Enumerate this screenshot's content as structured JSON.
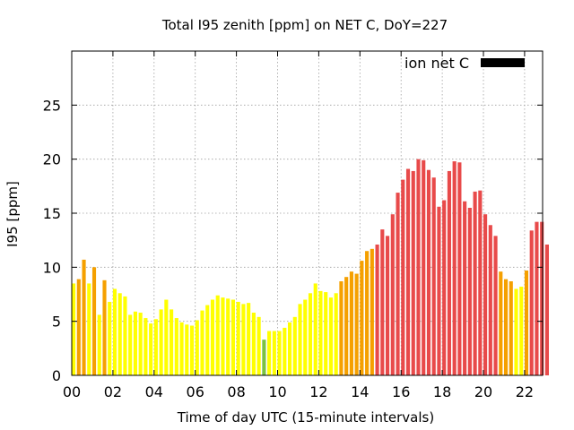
{
  "chart_data": {
    "type": "bar",
    "title": "Total I95 zenith [ppm] on NET C, DoY=227",
    "xlabel": "Time of day UTC (15-minute intervals)",
    "ylabel": "I95 [ppm]",
    "legend": {
      "label": "ion net C",
      "color": "#000000",
      "placement": "top-right"
    },
    "xlim": [
      0,
      22.875
    ],
    "ylim": [
      0,
      30
    ],
    "x_ticks": [
      "00",
      "02",
      "04",
      "06",
      "08",
      "10",
      "12",
      "14",
      "16",
      "18",
      "20",
      "22"
    ],
    "y_ticks": [
      "0",
      "5",
      "10",
      "15",
      "20",
      "25"
    ],
    "grid": true,
    "bar_interval_hours": 0.25,
    "colors": {
      "low": "#ffff00",
      "mid": "#f5a000",
      "high": "#e84a4a",
      "dip": "#7ac142"
    },
    "values": [
      8.5,
      8.9,
      10.7,
      8.5,
      10.0,
      5.6,
      8.8,
      6.8,
      8.0,
      7.6,
      7.3,
      5.6,
      5.9,
      5.8,
      5.3,
      4.8,
      5.2,
      6.1,
      7.0,
      6.1,
      5.3,
      4.9,
      4.7,
      4.6,
      5.1,
      6.0,
      6.5,
      7.0,
      7.4,
      7.2,
      7.1,
      7.0,
      6.8,
      6.6,
      6.7,
      5.8,
      5.4,
      3.3,
      4.1,
      4.1,
      4.1,
      4.4,
      4.9,
      5.4,
      6.6,
      7.0,
      7.6,
      8.5,
      7.8,
      7.7,
      7.2,
      7.6,
      8.7,
      9.1,
      9.6,
      9.4,
      10.6,
      11.5,
      11.7,
      12.1,
      13.5,
      12.9,
      14.9,
      16.9,
      18.1,
      19.1,
      18.9,
      20.0,
      19.9,
      19.0,
      18.3,
      15.6,
      16.2,
      18.9,
      19.8,
      19.7,
      16.1,
      15.5,
      17.0,
      17.1,
      14.9,
      13.9,
      12.9,
      9.6,
      8.9,
      8.7,
      8.0,
      8.2,
      9.7,
      13.4,
      14.2,
      14.2,
      12.1
    ]
  }
}
